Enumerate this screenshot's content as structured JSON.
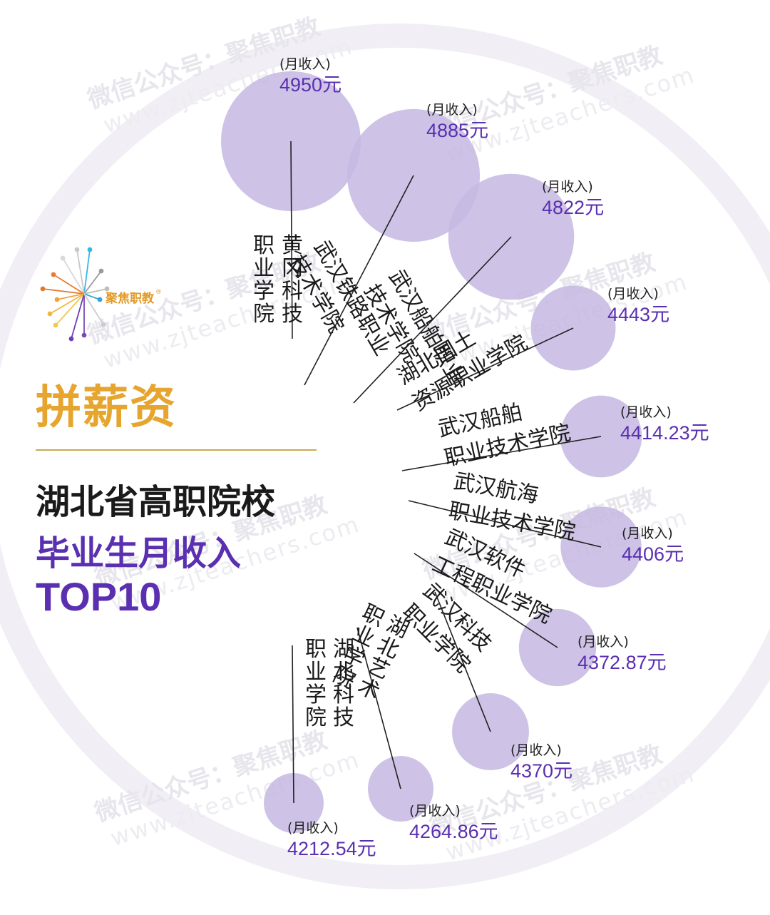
{
  "title": {
    "section": "拼薪资",
    "line1": "湖北省高职院校",
    "line2": "毕业生月收入",
    "line3": "TOP10"
  },
  "logo": {
    "text": "聚焦职教",
    "mark": "®"
  },
  "watermark": {
    "cn": "微信公众号：聚焦职教",
    "url": "www.zjteachers.com"
  },
  "colors": {
    "bubble": "#c5b8e2",
    "accent": "#5a2fb0",
    "gold": "#e6a52e",
    "ring": "#f1eff5"
  },
  "chart_data": {
    "type": "bubble",
    "value_label": "(月收入)",
    "unit": "元",
    "items": [
      {
        "name": "黄冈科技职业学院",
        "lines": [
          "黄冈科技",
          "职业学院"
        ],
        "value": 4950,
        "display": "4950元"
      },
      {
        "name": "武汉铁路职业技术学院",
        "lines": [
          "武汉铁路职业",
          "技术学院"
        ],
        "value": 4885,
        "display": "4885元"
      },
      {
        "name": "武汉船舶职业技术学院",
        "lines": [
          "武汉船舶职业",
          "技术学院"
        ],
        "value": 4822,
        "display": "4822元"
      },
      {
        "name": "湖北国土资源职业学院",
        "lines": [
          "湖北国土",
          "资源职业学院"
        ],
        "value": 4443,
        "display": "4443元"
      },
      {
        "name": "武汉船舶职业技术学院",
        "lines": [
          "武汉船舶",
          "职业技术学院"
        ],
        "value": 4414.23,
        "display": "4414.23元"
      },
      {
        "name": "武汉航海职业技术学院",
        "lines": [
          "武汉航海",
          "职业技术学院"
        ],
        "value": 4406,
        "display": "4406元"
      },
      {
        "name": "武汉软件工程职业学院",
        "lines": [
          "武汉软件",
          "工程职业学院"
        ],
        "value": 4372.87,
        "display": "4372.87元"
      },
      {
        "name": "武汉科技职业学院",
        "lines": [
          "武汉科技",
          "职业学院"
        ],
        "value": 4370,
        "display": "4370元"
      },
      {
        "name": "湖北艺术职业学院",
        "lines": [
          "湖北艺术",
          "职业学院"
        ],
        "value": 4264.86,
        "display": "4264.86元"
      },
      {
        "name": "湖北科技职业学院",
        "lines": [
          "湖北科技",
          "职业学院"
        ],
        "value": 4212.54,
        "display": "4212.54元"
      }
    ]
  }
}
